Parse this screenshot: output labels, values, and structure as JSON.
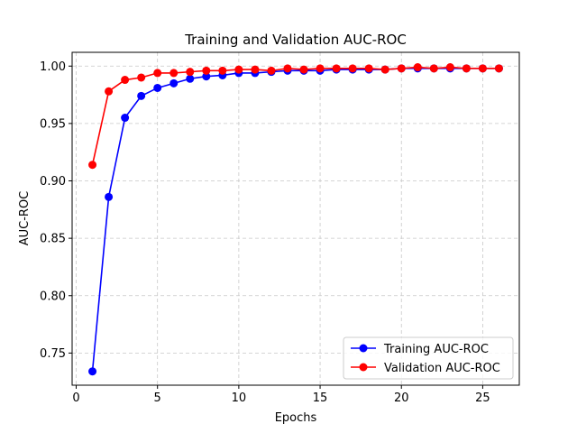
{
  "chart_data": {
    "type": "line",
    "title": "Training and Validation AUC-ROC",
    "xlabel": "Epochs",
    "ylabel": "AUC-ROC",
    "xlim": [
      -0.25,
      27.25
    ],
    "ylim": [
      0.722,
      1.012
    ],
    "xticks": [
      0,
      5,
      10,
      15,
      20,
      25
    ],
    "yticks": [
      0.75,
      0.8,
      0.85,
      0.9,
      0.95,
      1.0
    ],
    "ytick_labels": [
      "0.75",
      "0.80",
      "0.85",
      "0.90",
      "0.95",
      "1.00"
    ],
    "grid": true,
    "legend_position": "lower-right",
    "x": [
      1,
      2,
      3,
      4,
      5,
      6,
      7,
      8,
      9,
      10,
      11,
      12,
      13,
      14,
      15,
      16,
      17,
      18,
      19,
      20,
      21,
      22,
      23,
      24,
      25,
      26
    ],
    "series": [
      {
        "name": "Training AUC-ROC",
        "color": "#0000ff",
        "values": [
          0.734,
          0.886,
          0.955,
          0.974,
          0.981,
          0.985,
          0.989,
          0.991,
          0.992,
          0.994,
          0.994,
          0.995,
          0.996,
          0.996,
          0.996,
          0.997,
          0.997,
          0.997,
          0.997,
          0.998,
          0.998,
          0.998,
          0.998,
          0.998,
          0.998,
          0.998
        ]
      },
      {
        "name": "Validation AUC-ROC",
        "color": "#ff0000",
        "values": [
          0.914,
          0.978,
          0.988,
          0.99,
          0.994,
          0.994,
          0.995,
          0.996,
          0.996,
          0.997,
          0.997,
          0.996,
          0.998,
          0.997,
          0.998,
          0.998,
          0.998,
          0.998,
          0.997,
          0.998,
          0.999,
          0.998,
          0.999,
          0.998,
          0.998,
          0.998
        ]
      }
    ]
  }
}
